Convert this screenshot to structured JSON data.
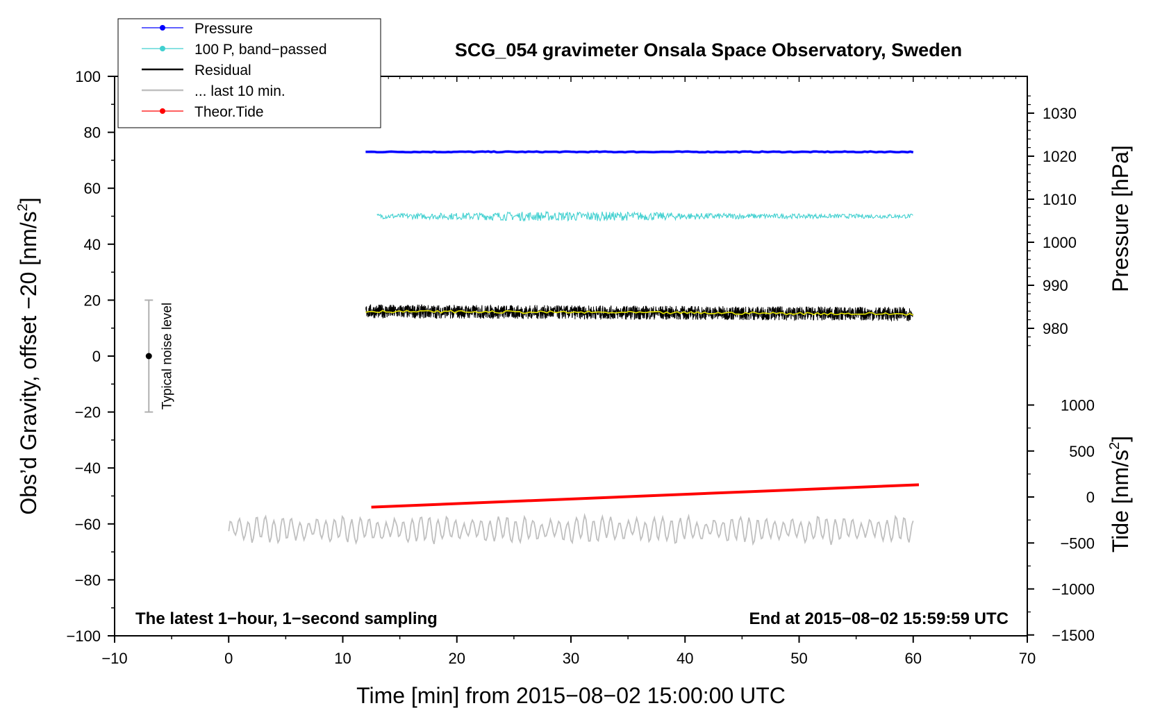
{
  "chart_data": {
    "type": "line",
    "title": "SCG_054 gravimeter Onsala Space Observatory, Sweden",
    "xlabel": "Time [min] from 2015−08−02 15:00:00 UTC",
    "ylabel_left": "Obs’d Gravity, offset −20 [nm/s",
    "ylabel_left_sup": "2",
    "ylabel_left_end": "]",
    "ylabel_right_pressure": "Pressure [hPa]",
    "ylabel_right_tide": "Tide [nm/s",
    "ylabel_right_tide_sup": "2",
    "ylabel_right_tide_end": "]",
    "xlim": [
      -10,
      70
    ],
    "ylim": [
      -100,
      100
    ],
    "pressure_axis": {
      "ticks": [
        980,
        990,
        1000,
        1010,
        1020,
        1030
      ],
      "labels": [
        "980",
        "990",
        "1000",
        "1010",
        "1020",
        "1030"
      ]
    },
    "tide_axis": {
      "ticks": [
        -1500,
        -1000,
        -500,
        0,
        500,
        1000
      ],
      "labels": [
        "−1500",
        "−1000",
        "−500",
        "0",
        "500",
        "1000"
      ]
    },
    "x_ticks": [
      -10,
      0,
      10,
      20,
      30,
      40,
      50,
      60,
      70
    ],
    "x_tick_labels": [
      "−10",
      "0",
      "10",
      "20",
      "30",
      "40",
      "50",
      "60",
      "70"
    ],
    "y_ticks": [
      -100,
      -80,
      -60,
      -40,
      -20,
      0,
      20,
      40,
      60,
      80,
      100
    ],
    "y_tick_labels": [
      "−100",
      "−80",
      "−60",
      "−40",
      "−20",
      "0",
      "20",
      "40",
      "60",
      "80",
      "100"
    ],
    "grid": false,
    "legend_position": "top-left",
    "series": [
      {
        "name": "Pressure",
        "color": "#0000ff",
        "x_range": [
          12,
          60
        ],
        "mean": 73,
        "noise": 0.3,
        "kind": "flat"
      },
      {
        "name": "100 P, band−passed",
        "color": "#40d0d0",
        "x_range": [
          13,
          60
        ],
        "mean": 50,
        "noise": 1.2,
        "kind": "noisy"
      },
      {
        "name": "Residual",
        "color": "#000000",
        "x_range": [
          12,
          60
        ],
        "mean": 16,
        "noise": 2.5,
        "kind": "dense"
      },
      {
        "name": "... last 10 min.",
        "color": "#c0c0c0",
        "x_range": [
          0,
          60
        ],
        "mean": -62,
        "noise": 3,
        "kind": "wave"
      },
      {
        "name": "Theor.Tide",
        "color": "#ff0000",
        "x_range": [
          12.5,
          60.5
        ],
        "y_start": -54,
        "y_end": -46,
        "kind": "linear"
      }
    ],
    "smoothed_residual": {
      "color": "#e8e800",
      "mean": 16
    },
    "noise_level": {
      "label": "Typical noise level",
      "x": -7,
      "y": 0,
      "y_low": -20,
      "y_high": 20
    },
    "annotation_left": "The latest 1−hour, 1−second sampling",
    "annotation_right": "End at 2015−08−02 15:59:59 UTC"
  }
}
